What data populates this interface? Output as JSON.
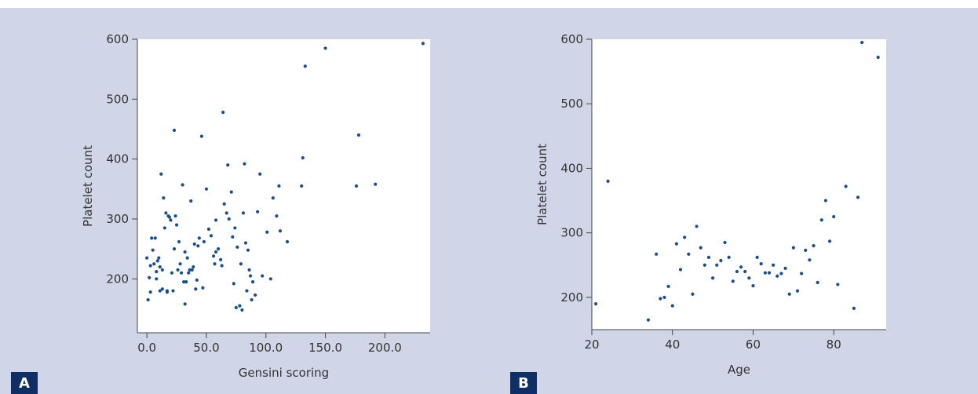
{
  "panels": {
    "a": {
      "letter": "A"
    },
    "b": {
      "letter": "B"
    }
  },
  "colors": {
    "background": "#d0d6e7",
    "point": "#1b4f8a",
    "letter_bg": "#0f2e64"
  },
  "chart_data": [
    {
      "type": "scatter",
      "title": "",
      "xlabel": "Gensini scoring",
      "ylabel": "Platelet count",
      "xlim": [
        -8,
        238
      ],
      "ylim": [
        110,
        600
      ],
      "x_ticks": [
        0,
        50,
        100,
        150,
        200
      ],
      "x_tick_labels": [
        "0.0",
        "50.0",
        "100.0",
        "150.0",
        "200.0"
      ],
      "y_ticks": [
        200,
        300,
        400,
        500,
        600
      ],
      "y_tick_labels": [
        "200",
        "300",
        "400",
        "500",
        "600"
      ],
      "grid": false,
      "points": [
        [
          0,
          235
        ],
        [
          1,
          165
        ],
        [
          2,
          202
        ],
        [
          3,
          222
        ],
        [
          3,
          178
        ],
        [
          4,
          268
        ],
        [
          5,
          248
        ],
        [
          6,
          225
        ],
        [
          7,
          268
        ],
        [
          8,
          212
        ],
        [
          8,
          200
        ],
        [
          9,
          230
        ],
        [
          10,
          235
        ],
        [
          11,
          220
        ],
        [
          11,
          180
        ],
        [
          12,
          375
        ],
        [
          13,
          215
        ],
        [
          13,
          183
        ],
        [
          14,
          335
        ],
        [
          15,
          285
        ],
        [
          16,
          310
        ],
        [
          17,
          180
        ],
        [
          17,
          178
        ],
        [
          18,
          305
        ],
        [
          19,
          303
        ],
        [
          20,
          298
        ],
        [
          21,
          210
        ],
        [
          22,
          180
        ],
        [
          23,
          250
        ],
        [
          23,
          448
        ],
        [
          24,
          305
        ],
        [
          25,
          290
        ],
        [
          26,
          215
        ],
        [
          27,
          262
        ],
        [
          28,
          225
        ],
        [
          29,
          210
        ],
        [
          30,
          357
        ],
        [
          31,
          195
        ],
        [
          32,
          245
        ],
        [
          32,
          158
        ],
        [
          33,
          195
        ],
        [
          34,
          235
        ],
        [
          35,
          210
        ],
        [
          36,
          215
        ],
        [
          37,
          330
        ],
        [
          38,
          215
        ],
        [
          39,
          220
        ],
        [
          40,
          258
        ],
        [
          41,
          183
        ],
        [
          42,
          198
        ],
        [
          43,
          255
        ],
        [
          44,
          268
        ],
        [
          46,
          438
        ],
        [
          47,
          185
        ],
        [
          48,
          262
        ],
        [
          50,
          350
        ],
        [
          52,
          283
        ],
        [
          54,
          272
        ],
        [
          56,
          238
        ],
        [
          57,
          225
        ],
        [
          58,
          245
        ],
        [
          58,
          298
        ],
        [
          60,
          250
        ],
        [
          62,
          232
        ],
        [
          63,
          222
        ],
        [
          64,
          478
        ],
        [
          65,
          325
        ],
        [
          67,
          310
        ],
        [
          68,
          390
        ],
        [
          69,
          300
        ],
        [
          71,
          345
        ],
        [
          72,
          270
        ],
        [
          73,
          192
        ],
        [
          74,
          285
        ],
        [
          75,
          152
        ],
        [
          76,
          253
        ],
        [
          78,
          155
        ],
        [
          79,
          225
        ],
        [
          80,
          148
        ],
        [
          81,
          310
        ],
        [
          82,
          392
        ],
        [
          83,
          260
        ],
        [
          84,
          180
        ],
        [
          85,
          248
        ],
        [
          86,
          215
        ],
        [
          87,
          205
        ],
        [
          88,
          165
        ],
        [
          89,
          195
        ],
        [
          91,
          173
        ],
        [
          93,
          312
        ],
        [
          95,
          375
        ],
        [
          97,
          205
        ],
        [
          101,
          278
        ],
        [
          104,
          200
        ],
        [
          106,
          335
        ],
        [
          109,
          305
        ],
        [
          111,
          355
        ],
        [
          112,
          280
        ],
        [
          118,
          262
        ],
        [
          130,
          355
        ],
        [
          131,
          402
        ],
        [
          133,
          555
        ],
        [
          150,
          585
        ],
        [
          176,
          355
        ],
        [
          178,
          440
        ],
        [
          192,
          358
        ],
        [
          232,
          593
        ]
      ]
    },
    {
      "type": "scatter",
      "title": "",
      "xlabel": "Age",
      "ylabel": "Platelet count",
      "xlim": [
        20,
        93
      ],
      "ylim": [
        150,
        600
      ],
      "x_ticks": [
        20,
        40,
        60,
        80
      ],
      "x_tick_labels": [
        "20",
        "40",
        "60",
        "80"
      ],
      "y_ticks": [
        200,
        300,
        400,
        500,
        600
      ],
      "y_tick_labels": [
        "200",
        "300",
        "400",
        "500",
        "600"
      ],
      "grid": false,
      "points": [
        [
          21,
          190
        ],
        [
          24,
          380
        ],
        [
          34,
          165
        ],
        [
          36,
          267
        ],
        [
          37,
          198
        ],
        [
          38,
          200
        ],
        [
          39,
          217
        ],
        [
          40,
          187
        ],
        [
          41,
          283
        ],
        [
          42,
          243
        ],
        [
          43,
          293
        ],
        [
          44,
          267
        ],
        [
          45,
          205
        ],
        [
          46,
          310
        ],
        [
          47,
          277
        ],
        [
          48,
          250
        ],
        [
          49,
          262
        ],
        [
          50,
          230
        ],
        [
          51,
          250
        ],
        [
          52,
          257
        ],
        [
          53,
          285
        ],
        [
          54,
          262
        ],
        [
          55,
          225
        ],
        [
          56,
          240
        ],
        [
          57,
          247
        ],
        [
          58,
          240
        ],
        [
          59,
          230
        ],
        [
          60,
          218
        ],
        [
          61,
          262
        ],
        [
          62,
          252
        ],
        [
          63,
          238
        ],
        [
          64,
          238
        ],
        [
          65,
          250
        ],
        [
          66,
          233
        ],
        [
          67,
          237
        ],
        [
          68,
          245
        ],
        [
          69,
          205
        ],
        [
          70,
          277
        ],
        [
          71,
          210
        ],
        [
          72,
          237
        ],
        [
          73,
          273
        ],
        [
          74,
          258
        ],
        [
          75,
          280
        ],
        [
          76,
          223
        ],
        [
          77,
          320
        ],
        [
          78,
          350
        ],
        [
          79,
          287
        ],
        [
          80,
          325
        ],
        [
          81,
          220
        ],
        [
          83,
          372
        ],
        [
          85,
          183
        ],
        [
          86,
          355
        ],
        [
          87,
          595
        ],
        [
          91,
          572
        ]
      ]
    }
  ]
}
